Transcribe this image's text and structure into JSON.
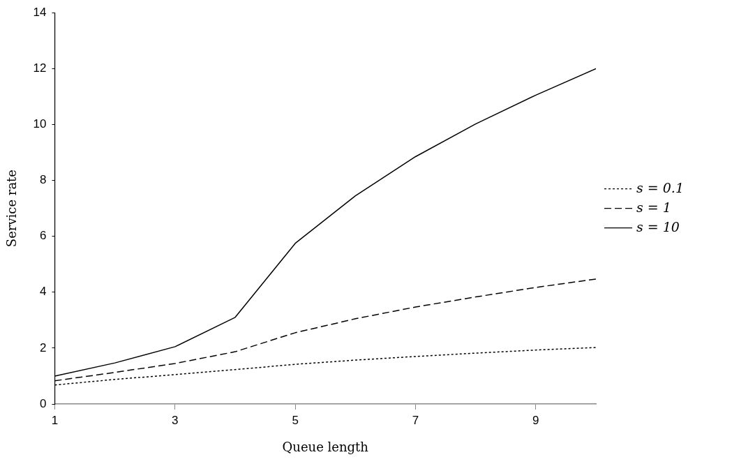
{
  "chart_data": {
    "type": "line",
    "xlabel": "Queue length",
    "ylabel": "Service rate",
    "x": [
      1,
      2,
      3,
      4,
      5,
      6,
      7,
      8,
      9,
      10
    ],
    "xlim": [
      1,
      10
    ],
    "xticks": [
      1,
      3,
      5,
      7,
      9
    ],
    "ylim": [
      0,
      14
    ],
    "yticks": [
      0,
      2,
      4,
      6,
      8,
      10,
      12,
      14
    ],
    "grid": false,
    "legend": "right",
    "marker": "none",
    "series": [
      {
        "name": "s = 0.1",
        "color": "#000000",
        "line_style": "dotted",
        "values": [
          0.68,
          0.88,
          1.05,
          1.23,
          1.42,
          1.57,
          1.7,
          1.82,
          1.93,
          2.02
        ]
      },
      {
        "name": "s = 1",
        "color": "#000000",
        "line_style": "dashed",
        "values": [
          0.83,
          1.13,
          1.45,
          1.87,
          2.55,
          3.05,
          3.47,
          3.83,
          4.17,
          4.47
        ]
      },
      {
        "name": "s = 10",
        "color": "#000000",
        "line_style": "solid",
        "values": [
          1.0,
          1.47,
          2.05,
          3.1,
          5.75,
          7.45,
          8.85,
          10.02,
          11.05,
          12.0
        ]
      }
    ]
  }
}
